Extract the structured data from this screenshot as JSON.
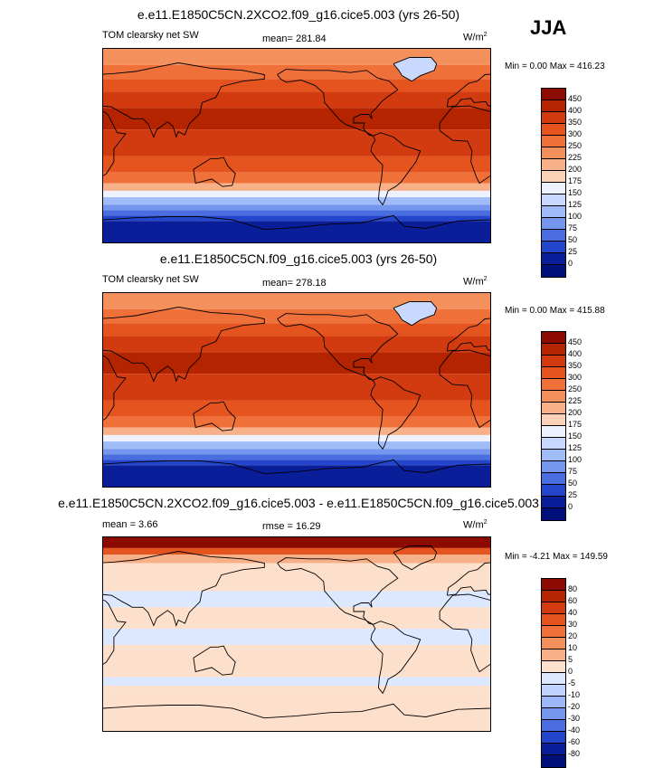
{
  "season": "JJA",
  "panels": [
    {
      "title": "e.e11.E1850C5CN.2XCO2.f09_g16.cice5.003 (yrs 26-50)",
      "left_label": "TOM clearsky net SW",
      "center_label": "mean= 281.84",
      "units": "W/m",
      "units_sup": "2",
      "minmax": "Min =   0.00 Max = 416.23",
      "levels": [
        "450",
        "400",
        "350",
        "300",
        "250",
        "225",
        "200",
        "175",
        "150",
        "125",
        "100",
        "75",
        "50",
        "25",
        "0"
      ],
      "colors": [
        "#8c0a00",
        "#b42400",
        "#d23a10",
        "#e5541e",
        "#f0703a",
        "#f4905c",
        "#f8b088",
        "#fbd2b8",
        "#eef2ff",
        "#c8d8ff",
        "#a0bcf8",
        "#7496ec",
        "#4a6ee0",
        "#2446cc",
        "#0a1e9a",
        "#00107a"
      ]
    },
    {
      "title": "e.e11.E1850C5CN.f09_g16.cice5.003 (yrs 26-50)",
      "left_label": "TOM clearsky net SW",
      "center_label": "mean= 278.18",
      "units": "W/m",
      "units_sup": "2",
      "minmax": "Min =   0.00 Max = 415.88",
      "levels": [
        "450",
        "400",
        "350",
        "300",
        "250",
        "225",
        "200",
        "175",
        "150",
        "125",
        "100",
        "75",
        "50",
        "25",
        "0"
      ],
      "colors": [
        "#8c0a00",
        "#b42400",
        "#d23a10",
        "#e5541e",
        "#f0703a",
        "#f4905c",
        "#f8b088",
        "#fbd2b8",
        "#eef2ff",
        "#c8d8ff",
        "#a0bcf8",
        "#7496ec",
        "#4a6ee0",
        "#2446cc",
        "#0a1e9a",
        "#00107a"
      ]
    },
    {
      "title": "e.e11.E1850C5CN.2XCO2.f09_g16.cice5.003 - e.e11.E1850C5CN.f09_g16.cice5.003",
      "left_label": "mean =   3.66",
      "center_label": "rmse =  16.29",
      "units": "W/m",
      "units_sup": "2",
      "minmax": "Min = -4.21 Max = 149.59",
      "levels": [
        "80",
        "60",
        "40",
        "30",
        "20",
        "10",
        "5",
        "0",
        "-5",
        "-10",
        "-20",
        "-30",
        "-40",
        "-60",
        "-80"
      ],
      "colors": [
        "#8c0a00",
        "#b42400",
        "#d23a10",
        "#e5541e",
        "#f0703a",
        "#f4905c",
        "#f8b088",
        "#fde0cc",
        "#dce8ff",
        "#c0d2ff",
        "#9cb8f8",
        "#7496ec",
        "#4a6ee0",
        "#2446cc",
        "#0a1e9a",
        "#00107a"
      ]
    }
  ]
}
